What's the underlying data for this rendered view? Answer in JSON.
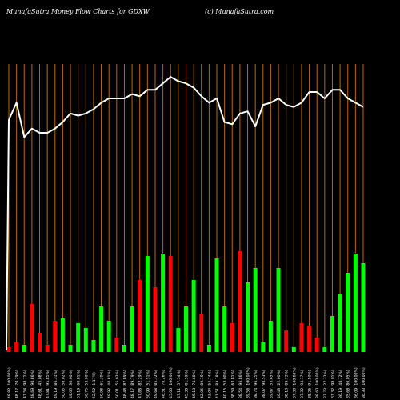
{
  "header": {
    "title": "MunafaSutra  Money Flow  Charts for GDXW",
    "site": "(c) MunafaSutra.com"
  },
  "chart_data": {
    "type": "bar",
    "title": "MunafaSutra  Money Flow  Charts for GDXW",
    "bar_colors": {
      "up": "#00ff00",
      "down": "#ff0000"
    },
    "line_color": "#ffffff",
    "gridline_color": "#b86a00",
    "background": "#000000",
    "ylim_bars": [
      0,
      100
    ],
    "ylim_line": [
      0,
      100
    ],
    "categories": [
      "48.82 (100.00%)",
      "48.17 (70.29%)",
      "47.54 (98.71%)",
      "48.69 (90.86%)",
      "48.61 (45.08%)",
      "47.81 (95.85%)",
      "49.19 (86.31%)",
      "50.05 (58.02%)",
      "49.05 (30.00%)",
      "51.19 (68.81%)",
      "50.75 (53.00%)",
      "52.52 (1.17%)",
      "50.98 (61.39%)",
      "49.92 (40.81%)",
      "50.01 (55.03%)",
      "48.48 (87.89%)",
      "48.17 (89.79%)",
      "47.88 (82.29%)",
      "50.99 (51.51%)",
      "49.68 (85.32%)",
      "48.51 (76.26%)",
      "45.00 (100.00%)",
      "47.11 (57.54%)",
      "45.30 (81.59%)",
      "45.10 (74.68%)",
      "42.05 (89.15%)",
      "43.04 (54.74%)",
      "41.51 (83.18%)",
      "40.15 (53.00%)",
      "38.59 (63.81%)",
      "38.54 (96.86%)",
      "39.56 (100.00%)",
      "38.74 (96.25%)",
      "38.07 (98.53%)",
      "39.67 (53.65%)",
      "40.43 (22.00%)",
      "38.13 (89.73%)",
      "37.30 (100.00%)",
      "37.32 (94.17%)",
      "38.26 (91.50%)",
      "38.60 (100.00%)",
      "37.73 (27.32%)",
      "37.32 (98.01%)",
      "36.19 (40.72%)",
      "35.68 (80.05%)",
      "36.09 (100.00%)",
      "36.33 (100.00%)"
    ],
    "series": [
      {
        "values": [
          2,
          4,
          3,
          20,
          8,
          3,
          13,
          14,
          3,
          12,
          10,
          5,
          19,
          13,
          6,
          3,
          19,
          30,
          40,
          27,
          41,
          40,
          10,
          19,
          30,
          16,
          3,
          39,
          19,
          12,
          42,
          29,
          35,
          4,
          13,
          35,
          9,
          2,
          12,
          11,
          6,
          2,
          15,
          24,
          33,
          41,
          37
        ],
        "direction": [
          "d",
          "d",
          "u",
          "d",
          "d",
          "d",
          "d",
          "u",
          "u",
          "u",
          "u",
          "u",
          "u",
          "u",
          "d",
          "u",
          "u",
          "d",
          "u",
          "d",
          "u",
          "d",
          "u",
          "u",
          "u",
          "d",
          "u",
          "u",
          "u",
          "d",
          "d",
          "u",
          "u",
          "u",
          "u",
          "u",
          "d",
          "u",
          "d",
          "d",
          "d",
          "u",
          "u",
          "u",
          "u",
          "u",
          "u"
        ]
      },
      {
        "type": "line",
        "values": [
          67,
          75,
          59,
          63,
          61,
          61,
          63,
          66,
          70,
          69,
          70,
          72,
          75,
          77,
          77,
          77,
          79,
          78,
          81,
          81,
          84,
          87,
          85,
          84,
          82,
          78,
          75,
          77,
          66,
          65,
          70,
          71,
          64,
          74,
          75,
          77,
          74,
          73,
          75,
          80,
          80,
          77,
          81,
          81,
          77,
          75,
          73
        ]
      }
    ]
  }
}
